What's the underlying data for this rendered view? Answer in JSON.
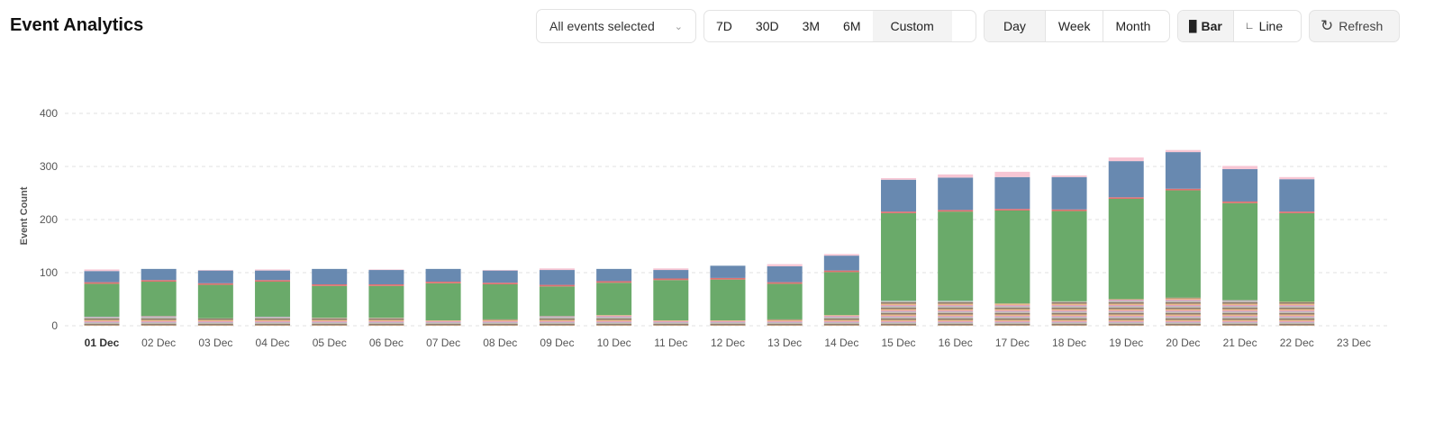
{
  "header": {
    "title": "Event Analytics"
  },
  "controls": {
    "event_filter": "All events selected",
    "ranges": [
      "7D",
      "30D",
      "3M",
      "6M",
      "Custom"
    ],
    "active_range": "Custom",
    "granularity": [
      "Day",
      "Week",
      "Month"
    ],
    "active_granularity": "Day",
    "chart_types": [
      "Bar",
      "Line"
    ],
    "active_chart_type": "Bar",
    "refresh_label": "Refresh"
  },
  "chart_data": {
    "type": "bar",
    "stacked": true,
    "ylabel": "Event Count",
    "xlabel": "",
    "ylim": [
      0,
      400
    ],
    "yticks": [
      0,
      100,
      200,
      300,
      400
    ],
    "grid": true,
    "legend": "none",
    "highlighted_category": "01 Dec",
    "categories": [
      "01 Dec",
      "02 Dec",
      "03 Dec",
      "04 Dec",
      "05 Dec",
      "06 Dec",
      "07 Dec",
      "08 Dec",
      "09 Dec",
      "10 Dec",
      "11 Dec",
      "12 Dec",
      "13 Dec",
      "14 Dec",
      "15 Dec",
      "16 Dec",
      "17 Dec",
      "18 Dec",
      "19 Dec",
      "20 Dec",
      "21 Dec",
      "22 Dec",
      "23 Dec"
    ],
    "series": [
      {
        "color": "#e8b98a",
        "values": [
          17,
          18,
          14,
          17,
          15,
          15,
          10,
          12,
          18,
          20,
          10,
          10,
          12,
          20,
          47,
          47,
          42,
          46,
          50,
          53,
          48,
          45,
          0
        ]
      },
      {
        "color": "#6aaa6a",
        "values": [
          62,
          65,
          63,
          66,
          60,
          60,
          70,
          66,
          56,
          61,
          76,
          77,
          67,
          81,
          165,
          168,
          175,
          170,
          189,
          202,
          183,
          167,
          0
        ]
      },
      {
        "color": "#e07070",
        "values": [
          3,
          3,
          3,
          3,
          3,
          3,
          3,
          3,
          3,
          3,
          3,
          3,
          3,
          3,
          3,
          3,
          3,
          3,
          3,
          3,
          3,
          3,
          0
        ]
      },
      {
        "color": "#6889b0",
        "values": [
          21,
          21,
          24,
          18,
          29,
          27,
          24,
          23,
          28,
          23,
          16,
          23,
          30,
          28,
          60,
          61,
          60,
          61,
          68,
          69,
          61,
          61,
          0
        ]
      },
      {
        "color": "#f7c6d4",
        "values": [
          3,
          0,
          1,
          2,
          0,
          1,
          0,
          1,
          3,
          0,
          3,
          0,
          4,
          3,
          3,
          6,
          10,
          3,
          7,
          4,
          6,
          4,
          0
        ]
      }
    ]
  }
}
